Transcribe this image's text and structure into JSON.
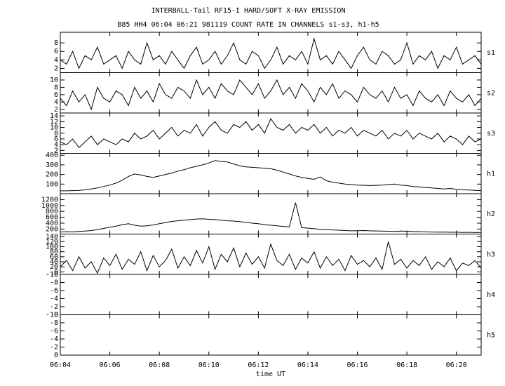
{
  "chart_data": {
    "type": "line",
    "title": "INTERBALL-Tail RF15-I HARD/SOFT X-RAY EMISSION",
    "subtitle": "B85 HH4 06:04 06:21 981119  COUNT RATE IN CHANNELS s1-s3, h1-h5",
    "x_label": "time UT",
    "xlim": [
      4,
      21
    ],
    "xticks": [
      {
        "value": 4,
        "label": "06:04"
      },
      {
        "value": 6,
        "label": "06:06"
      },
      {
        "value": 8,
        "label": "06:08"
      },
      {
        "value": 10,
        "label": "06:10"
      },
      {
        "value": 12,
        "label": "06:12"
      },
      {
        "value": 14,
        "label": "06:14"
      },
      {
        "value": 16,
        "label": "06:16"
      },
      {
        "value": 18,
        "label": "06:18"
      },
      {
        "value": 20,
        "label": "06:20"
      }
    ],
    "x": [
      4,
      4.25,
      4.5,
      4.75,
      5,
      5.25,
      5.5,
      5.75,
      6,
      6.25,
      6.5,
      6.75,
      7,
      7.25,
      7.5,
      7.75,
      8,
      8.25,
      8.5,
      8.75,
      9,
      9.25,
      9.5,
      9.75,
      10,
      10.25,
      10.5,
      10.75,
      11,
      11.25,
      11.5,
      11.75,
      12,
      12.25,
      12.5,
      12.75,
      13,
      13.25,
      13.5,
      13.75,
      14,
      14.25,
      14.5,
      14.75,
      15,
      15.25,
      15.5,
      15.75,
      16,
      16.25,
      16.5,
      16.75,
      17,
      17.25,
      17.5,
      17.75,
      18,
      18.25,
      18.5,
      18.75,
      19,
      19.25,
      19.5,
      19.75,
      20,
      20.25,
      20.5,
      20.75,
      21
    ],
    "series": [
      {
        "name": "s1",
        "color": "#000000",
        "ylim": [
          1,
          10.5
        ],
        "yticks": [
          2,
          4,
          6,
          8
        ],
        "values": [
          4,
          3,
          6,
          2,
          5,
          4,
          7,
          3,
          4,
          5,
          2,
          6,
          4,
          3,
          8,
          4,
          5,
          3,
          6,
          4,
          2,
          5,
          7,
          3,
          4,
          6,
          3,
          5,
          8,
          4,
          3,
          6,
          5,
          2,
          4,
          7,
          3,
          5,
          4,
          6,
          3,
          9,
          4,
          5,
          3,
          6,
          4,
          2,
          5,
          7,
          4,
          3,
          6,
          5,
          3,
          4,
          8,
          3,
          5,
          4,
          6,
          2,
          5,
          4,
          7,
          3,
          4,
          5,
          3
        ]
      },
      {
        "name": "s2",
        "color": "#000000",
        "ylim": [
          1,
          12
        ],
        "yticks": [
          2,
          4,
          6,
          8,
          10
        ],
        "values": [
          5,
          3,
          7,
          4,
          6,
          2,
          8,
          5,
          4,
          7,
          6,
          3,
          8,
          5,
          7,
          4,
          9,
          6,
          5,
          8,
          7,
          5,
          10,
          6,
          8,
          5,
          9,
          7,
          6,
          10,
          8,
          6,
          9,
          5,
          7,
          10,
          6,
          8,
          5,
          9,
          7,
          4,
          8,
          6,
          9,
          5,
          7,
          6,
          4,
          8,
          6,
          5,
          7,
          4,
          8,
          5,
          6,
          3,
          7,
          5,
          4,
          6,
          3,
          7,
          5,
          4,
          6,
          3,
          5
        ]
      },
      {
        "name": "s3",
        "color": "#000000",
        "ylim": [
          1,
          15
        ],
        "yticks": [
          2,
          4,
          6,
          8,
          10,
          12,
          14
        ],
        "values": [
          5,
          4,
          6,
          3,
          5,
          7,
          4,
          6,
          5,
          4,
          6,
          5,
          8,
          6,
          7,
          9,
          6,
          8,
          10,
          7,
          9,
          8,
          11,
          7,
          10,
          12,
          9,
          8,
          11,
          10,
          12,
          9,
          11,
          8,
          13,
          10,
          9,
          11,
          8,
          10,
          9,
          11,
          8,
          10,
          7,
          9,
          8,
          10,
          7,
          9,
          8,
          7,
          9,
          6,
          8,
          7,
          9,
          6,
          8,
          7,
          6,
          8,
          5,
          7,
          6,
          4,
          7,
          5,
          6
        ]
      },
      {
        "name": "h1",
        "color": "#000000",
        "ylim": [
          0,
          420
        ],
        "yticks": [
          100,
          200,
          300,
          400
        ],
        "values": [
          30,
          30,
          32,
          35,
          40,
          50,
          60,
          75,
          90,
          110,
          140,
          180,
          205,
          195,
          180,
          170,
          185,
          200,
          215,
          235,
          250,
          270,
          285,
          300,
          320,
          345,
          335,
          330,
          310,
          290,
          280,
          275,
          270,
          265,
          260,
          245,
          225,
          205,
          185,
          170,
          160,
          150,
          175,
          135,
          120,
          110,
          100,
          95,
          90,
          88,
          85,
          87,
          90,
          95,
          100,
          90,
          85,
          75,
          70,
          65,
          60,
          55,
          50,
          55,
          45,
          40,
          38,
          35,
          32
        ]
      },
      {
        "name": "h2",
        "color": "#000000",
        "ylim": [
          30,
          1400
        ],
        "yticks": [
          200,
          400,
          600,
          800,
          1000,
          1200
        ],
        "values": [
          100,
          110,
          105,
          120,
          130,
          150,
          180,
          220,
          260,
          300,
          350,
          380,
          330,
          300,
          310,
          340,
          380,
          420,
          460,
          480,
          500,
          520,
          540,
          550,
          530,
          520,
          500,
          480,
          470,
          450,
          430,
          400,
          380,
          350,
          330,
          310,
          290,
          270,
          1100,
          250,
          230,
          210,
          190,
          180,
          170,
          160,
          150,
          140,
          145,
          150,
          140,
          135,
          130,
          125,
          120,
          130,
          125,
          115,
          110,
          105,
          100,
          95,
          100,
          90,
          95,
          85,
          90,
          80,
          85
        ]
      },
      {
        "name": "h3",
        "color": "#000000",
        "ylim": [
          -10,
          150
        ],
        "yticks": [
          -10,
          0,
          20,
          40,
          60,
          80,
          100,
          120,
          140
        ],
        "values": [
          20,
          45,
          5,
          60,
          15,
          40,
          -5,
          55,
          25,
          70,
          10,
          50,
          30,
          80,
          5,
          65,
          20,
          45,
          90,
          15,
          60,
          25,
          85,
          35,
          100,
          10,
          70,
          40,
          95,
          20,
          75,
          30,
          60,
          15,
          110,
          45,
          25,
          70,
          10,
          55,
          35,
          80,
          15,
          60,
          25,
          50,
          5,
          65,
          30,
          45,
          20,
          55,
          10,
          120,
          30,
          50,
          15,
          45,
          25,
          60,
          10,
          40,
          20,
          55,
          5,
          35,
          25,
          45,
          15
        ]
      },
      {
        "name": "h4",
        "color": "#000000",
        "ylim": [
          0,
          -10
        ],
        "yticks": [
          0,
          -2,
          -4,
          -6,
          -8,
          -10
        ]
      },
      {
        "name": "h5",
        "color": "#000000",
        "ylim": [
          0,
          -10
        ],
        "yticks": [
          0,
          -2,
          -4,
          -6,
          -8,
          -10
        ]
      }
    ]
  }
}
